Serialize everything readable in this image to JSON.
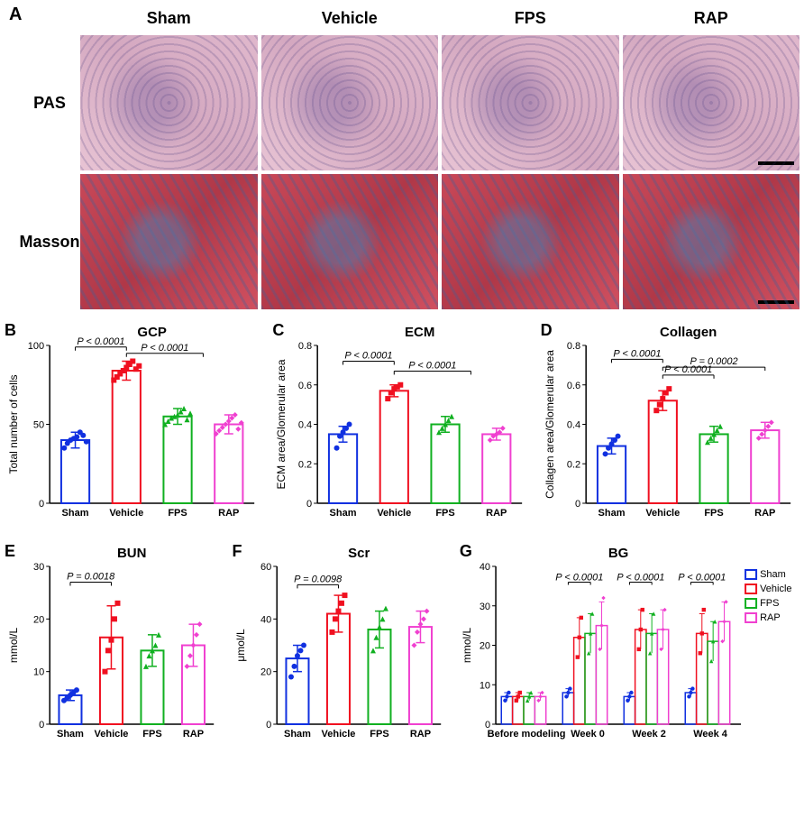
{
  "panelA": {
    "label": "A",
    "columns": [
      "Sham",
      "Vehicle",
      "FPS",
      "RAP"
    ],
    "rows": [
      "PAS",
      "Masson"
    ]
  },
  "colors": {
    "sham": "#1030e0",
    "vehicle": "#f01020",
    "fps": "#10b020",
    "rap": "#f040d0",
    "axis": "#000000"
  },
  "panelB": {
    "label": "B",
    "title": "GCP",
    "ylabel": "Total number of cells",
    "ylim": [
      0,
      100
    ],
    "ytick_step": 50,
    "categories": [
      "Sham",
      "Vehicle",
      "FPS",
      "RAP"
    ],
    "means": [
      40,
      84,
      55,
      50
    ],
    "errors": [
      5,
      6,
      5,
      6
    ],
    "scatter": [
      [
        35,
        38,
        40,
        41,
        42,
        45,
        43,
        39
      ],
      [
        78,
        80,
        82,
        84,
        86,
        88,
        90,
        85,
        87
      ],
      [
        50,
        52,
        54,
        55,
        56,
        58,
        60,
        53,
        57
      ],
      [
        44,
        46,
        48,
        50,
        52,
        54,
        56,
        47,
        51
      ]
    ],
    "pvals": [
      {
        "from": 0,
        "to": 1,
        "label": "P < 0.0001",
        "y": 99
      },
      {
        "from": 1,
        "to": 2.5,
        "label": "P < 0.0001",
        "y": 95
      }
    ]
  },
  "panelC": {
    "label": "C",
    "title": "ECM",
    "ylabel": "ECM area/Glomerular area",
    "ylim": [
      0,
      0.8
    ],
    "ytick_step": 0.2,
    "categories": [
      "Sham",
      "Vehicle",
      "FPS",
      "RAP"
    ],
    "means": [
      0.35,
      0.57,
      0.4,
      0.35
    ],
    "errors": [
      0.04,
      0.03,
      0.04,
      0.03
    ],
    "scatter": [
      [
        0.28,
        0.34,
        0.36,
        0.38,
        0.4
      ],
      [
        0.53,
        0.56,
        0.58,
        0.59,
        0.6
      ],
      [
        0.36,
        0.38,
        0.4,
        0.42,
        0.44
      ],
      [
        0.32,
        0.34,
        0.35,
        0.36,
        0.38
      ]
    ],
    "pvals": [
      {
        "from": 0,
        "to": 1,
        "label": "P < 0.0001",
        "y": 0.72
      },
      {
        "from": 1,
        "to": 2.5,
        "label": "P < 0.0001",
        "y": 0.67
      }
    ]
  },
  "panelD": {
    "label": "D",
    "title": "Collagen",
    "ylabel": "Collagen area/Glomerular area",
    "ylim": [
      0,
      0.8
    ],
    "ytick_step": 0.2,
    "categories": [
      "Sham",
      "Vehicle",
      "FPS",
      "RAP"
    ],
    "means": [
      0.29,
      0.52,
      0.35,
      0.37
    ],
    "errors": [
      0.04,
      0.05,
      0.04,
      0.04
    ],
    "scatter": [
      [
        0.25,
        0.28,
        0.3,
        0.32,
        0.34
      ],
      [
        0.47,
        0.5,
        0.53,
        0.56,
        0.58
      ],
      [
        0.31,
        0.33,
        0.35,
        0.37,
        0.39
      ],
      [
        0.33,
        0.35,
        0.37,
        0.39,
        0.41
      ]
    ],
    "pvals": [
      {
        "from": 0,
        "to": 1,
        "label": "P < 0.0001",
        "y": 0.73
      },
      {
        "from": 1,
        "to": 2,
        "label": "P < 0.0001",
        "y": 0.65
      },
      {
        "from": 1,
        "to": 3,
        "label": "P = 0.0002",
        "y": 0.69
      }
    ]
  },
  "panelE": {
    "label": "E",
    "title": "BUN",
    "ylabel": "mmol/L",
    "ylim": [
      0,
      30
    ],
    "ytick_step": 10,
    "categories": [
      "Sham",
      "Vehicle",
      "FPS",
      "RAP"
    ],
    "means": [
      5.5,
      16.5,
      14,
      15
    ],
    "errors": [
      1,
      6,
      3,
      4
    ],
    "scatter": [
      [
        4.5,
        5,
        5.5,
        6,
        6.5
      ],
      [
        10,
        14,
        16,
        20,
        23
      ],
      [
        11,
        13,
        14,
        15,
        17
      ],
      [
        11,
        13,
        15,
        17,
        19
      ]
    ],
    "pvals": [
      {
        "from": 0,
        "to": 1,
        "label": "P = 0.0018",
        "y": 27
      }
    ]
  },
  "panelF": {
    "label": "F",
    "title": "Scr",
    "ylabel": "μmol/L",
    "ylim": [
      0,
      60
    ],
    "ytick_step": 20,
    "categories": [
      "Sham",
      "Vehicle",
      "FPS",
      "RAP"
    ],
    "means": [
      25,
      42,
      36,
      37
    ],
    "errors": [
      5,
      7,
      7,
      6
    ],
    "scatter": [
      [
        18,
        22,
        26,
        28,
        30
      ],
      [
        35,
        40,
        43,
        46,
        49
      ],
      [
        28,
        33,
        37,
        40,
        44
      ],
      [
        30,
        35,
        38,
        40,
        43
      ]
    ],
    "pvals": [
      {
        "from": 0,
        "to": 1,
        "label": "P = 0.0098",
        "y": 53
      }
    ]
  },
  "panelG": {
    "label": "G",
    "title": "BG",
    "ylabel": "mmol/L",
    "ylim": [
      0,
      40
    ],
    "ytick_step": 10,
    "xgroups": [
      "Before modeling",
      "Week 0",
      "Week 2",
      "Week 4"
    ],
    "series": [
      "Sham",
      "Vehicle",
      "FPS",
      "RAP"
    ],
    "data": {
      "Before modeling": {
        "means": [
          7,
          7,
          7,
          7
        ],
        "errors": [
          1,
          1,
          1,
          1
        ],
        "scatter": [
          [
            6,
            7,
            8
          ],
          [
            6,
            7,
            8
          ],
          [
            6,
            7,
            8
          ],
          [
            6,
            7,
            8
          ]
        ]
      },
      "Week 0": {
        "means": [
          8,
          22,
          23,
          25
        ],
        "errors": [
          1,
          5,
          5,
          6
        ],
        "scatter": [
          [
            7,
            8,
            9
          ],
          [
            17,
            22,
            27
          ],
          [
            18,
            23,
            28
          ],
          [
            19,
            25,
            32
          ]
        ]
      },
      "Week 2": {
        "means": [
          7,
          24,
          23,
          24
        ],
        "errors": [
          1,
          5,
          5,
          5
        ],
        "scatter": [
          [
            6,
            7,
            8
          ],
          [
            19,
            24,
            29
          ],
          [
            18,
            23,
            28
          ],
          [
            19,
            24,
            29
          ]
        ]
      },
      "Week 4": {
        "means": [
          8,
          23,
          21,
          26
        ],
        "errors": [
          1,
          5,
          5,
          5
        ],
        "scatter": [
          [
            7,
            8,
            9
          ],
          [
            18,
            23,
            29
          ],
          [
            16,
            21,
            26
          ],
          [
            21,
            26,
            31
          ]
        ]
      }
    },
    "pvals": [
      {
        "group": 1,
        "label": "P < 0.0001",
        "y": 36
      },
      {
        "group": 2,
        "label": "P < 0.0001",
        "y": 36
      },
      {
        "group": 3,
        "label": "P < 0.0001",
        "y": 36
      }
    ],
    "legend": [
      "Sham",
      "Vehicle",
      "FPS",
      "RAP"
    ]
  }
}
